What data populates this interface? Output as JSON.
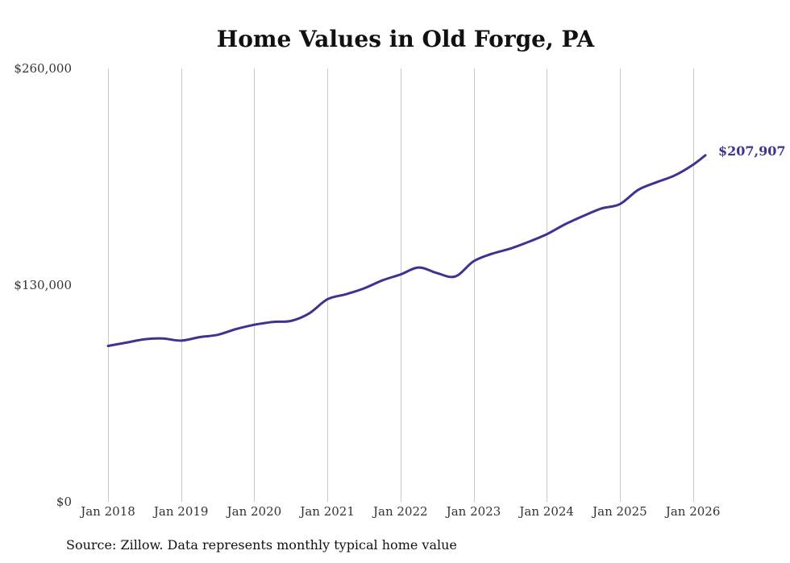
{
  "chart_data": {
    "type": "line",
    "title": "Home Values in Old Forge, PA",
    "xlabel": "",
    "ylabel": "",
    "ylim": [
      0,
      260000
    ],
    "yticks": [
      0,
      130000,
      260000
    ],
    "ytick_labels": [
      "$0",
      "$130,000",
      "$260,000"
    ],
    "xticks": [
      2018,
      2019,
      2020,
      2021,
      2022,
      2023,
      2024,
      2025,
      2026
    ],
    "xtick_labels": [
      "Jan 2018",
      "Jan 2019",
      "Jan 2020",
      "Jan 2021",
      "Jan 2022",
      "Jan 2023",
      "Jan 2024",
      "Jan 2025",
      "Jan 2026"
    ],
    "xlim": [
      2018,
      2026.25
    ],
    "grid": "vertical",
    "color": "#3d3391",
    "series": [
      {
        "name": "Typical home value",
        "x": [
          2018.0,
          2018.25,
          2018.5,
          2018.75,
          2019.0,
          2019.25,
          2019.5,
          2019.75,
          2020.0,
          2020.25,
          2020.5,
          2020.75,
          2021.0,
          2021.25,
          2021.5,
          2021.75,
          2022.0,
          2022.25,
          2022.5,
          2022.75,
          2023.0,
          2023.25,
          2023.5,
          2023.75,
          2024.0,
          2024.25,
          2024.5,
          2024.75,
          2025.0,
          2025.25,
          2025.5,
          2025.75,
          2026.0,
          2026.17
        ],
        "values": [
          93500,
          95500,
          97500,
          98000,
          96700,
          98800,
          100200,
          103600,
          106200,
          107900,
          108500,
          113000,
          121500,
          124500,
          128000,
          132800,
          136400,
          140600,
          137200,
          135200,
          144300,
          148800,
          151900,
          155900,
          160500,
          166500,
          171500,
          176000,
          178600,
          187100,
          191700,
          195800,
          202200,
          207907
        ]
      }
    ],
    "end_label": "$207,907"
  },
  "source_note": "Source: Zillow. Data represents monthly typical home value"
}
